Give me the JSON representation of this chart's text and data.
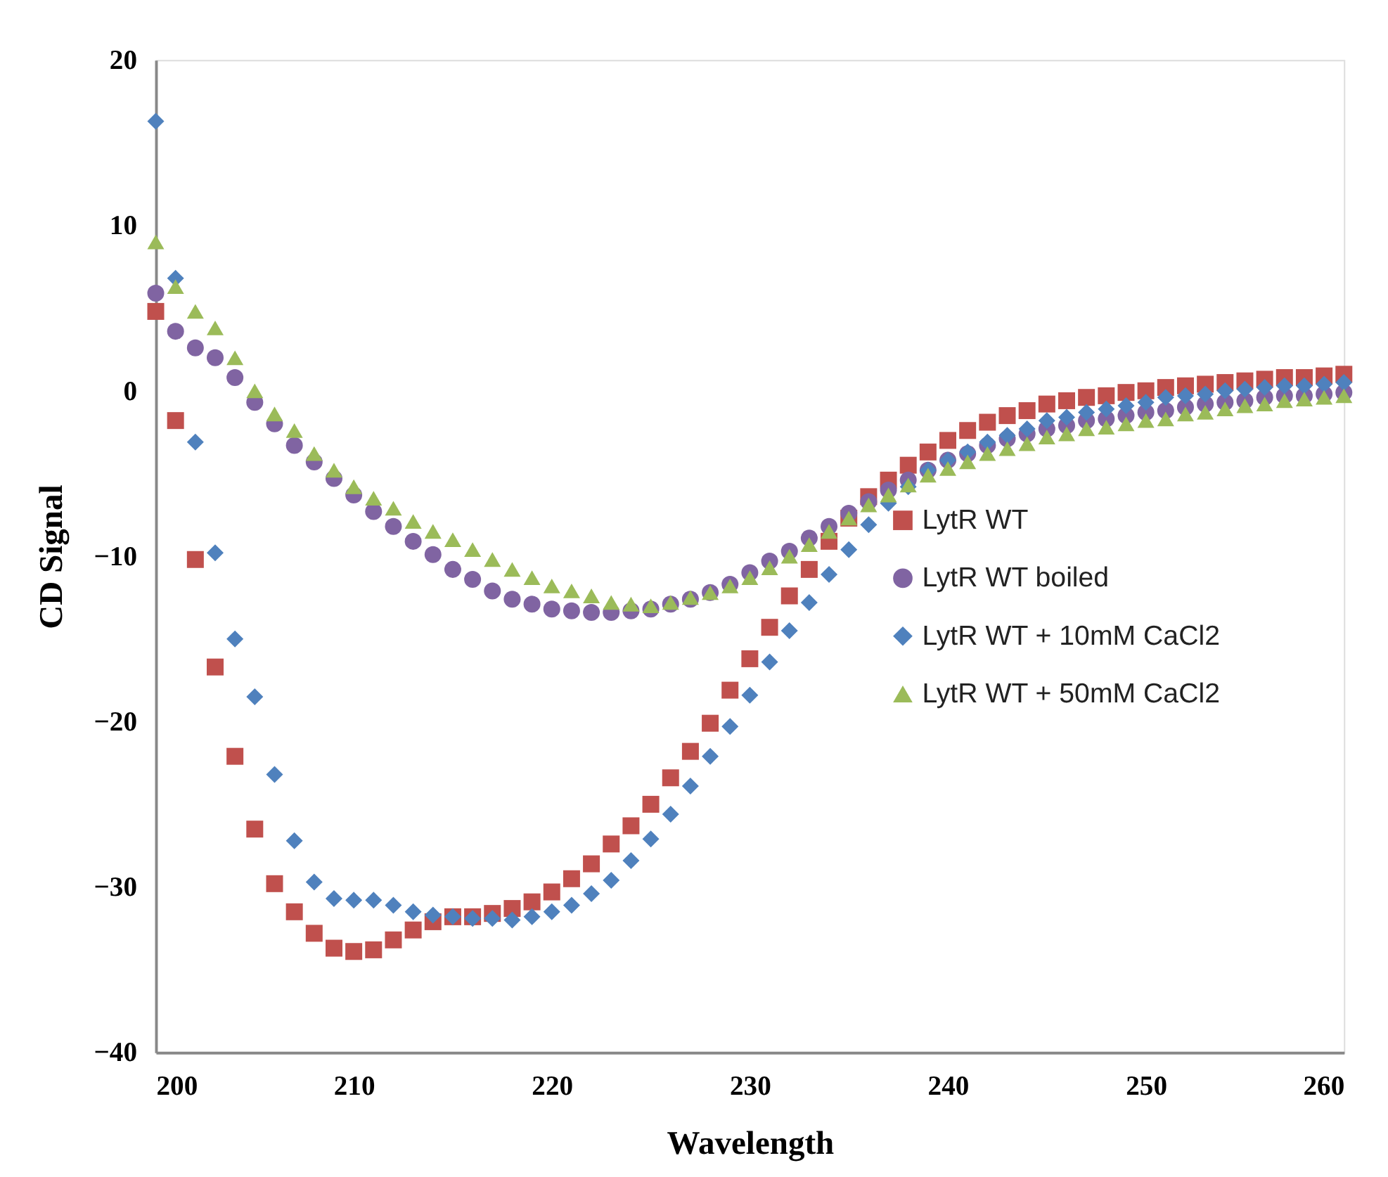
{
  "chart_data": {
    "type": "scatter",
    "xlabel": "Wavelength",
    "ylabel": "CD Signal",
    "xlim": [
      200,
      260
    ],
    "xticks": [
      200,
      210,
      220,
      230,
      240,
      250,
      260
    ],
    "ylim": [
      -40,
      20
    ],
    "yticks": [
      -40,
      -30,
      -20,
      -10,
      0,
      10,
      20
    ],
    "grid": false,
    "legend": "right",
    "x": [
      200,
      201,
      202,
      203,
      204,
      205,
      206,
      207,
      208,
      209,
      210,
      211,
      212,
      213,
      214,
      215,
      216,
      217,
      218,
      219,
      220,
      221,
      222,
      223,
      224,
      225,
      226,
      227,
      228,
      229,
      230,
      231,
      232,
      233,
      234,
      235,
      236,
      237,
      238,
      239,
      240,
      241,
      242,
      243,
      244,
      245,
      246,
      247,
      248,
      249,
      250,
      251,
      252,
      253,
      254,
      255,
      256,
      257,
      258,
      259,
      260
    ],
    "series": [
      {
        "name": "LytR WT",
        "color": "#c0504d",
        "marker": "square",
        "values": [
          4.8,
          -1.8,
          -10.2,
          -16.7,
          -22.1,
          -26.5,
          -29.8,
          -31.5,
          -32.8,
          -33.7,
          -33.9,
          -33.8,
          -33.2,
          -32.6,
          -32.1,
          -31.8,
          -31.8,
          -31.6,
          -31.3,
          -30.9,
          -30.3,
          -29.5,
          -28.6,
          -27.4,
          -26.3,
          -25.0,
          -23.4,
          -21.8,
          -20.1,
          -18.1,
          -16.2,
          -14.3,
          -12.4,
          -10.8,
          -9.1,
          -7.7,
          -6.4,
          -5.4,
          -4.5,
          -3.7,
          -3.0,
          -2.4,
          -1.9,
          -1.5,
          -1.2,
          -0.8,
          -0.6,
          -0.4,
          -0.3,
          -0.1,
          0,
          0.2,
          0.3,
          0.4,
          0.5,
          0.6,
          0.7,
          0.8,
          0.8,
          0.9,
          1.0
        ]
      },
      {
        "name": "LytR WT boiled",
        "color": "#8064a2",
        "marker": "circle",
        "values": [
          5.9,
          3.6,
          2.6,
          2.0,
          0.8,
          -0.7,
          -2.0,
          -3.3,
          -4.3,
          -5.3,
          -6.3,
          -7.3,
          -8.2,
          -9.1,
          -9.9,
          -10.8,
          -11.4,
          -12.1,
          -12.6,
          -12.9,
          -13.2,
          -13.3,
          -13.4,
          -13.4,
          -13.3,
          -13.2,
          -12.9,
          -12.6,
          -12.2,
          -11.7,
          -11.0,
          -10.3,
          -9.7,
          -8.9,
          -8.2,
          -7.4,
          -6.7,
          -6.0,
          -5.4,
          -4.8,
          -4.2,
          -3.8,
          -3.3,
          -2.9,
          -2.6,
          -2.3,
          -2.1,
          -1.8,
          -1.7,
          -1.5,
          -1.3,
          -1.2,
          -1.0,
          -0.8,
          -0.7,
          -0.6,
          -0.4,
          -0.3,
          -0.3,
          -0.2,
          -0.1
        ]
      },
      {
        "name": "LytR WT + 10mM  CaCl2",
        "color": "#4f81bd",
        "marker": "diamond",
        "values": [
          16.3,
          6.8,
          -3.1,
          -9.8,
          -15.0,
          -18.5,
          -23.2,
          -27.2,
          -29.7,
          -30.7,
          -30.8,
          -30.8,
          -31.1,
          -31.5,
          -31.7,
          -31.8,
          -31.9,
          -31.9,
          -32.0,
          -31.8,
          -31.5,
          -31.1,
          -30.4,
          -29.6,
          -28.4,
          -27.1,
          -25.6,
          -23.9,
          -22.1,
          -20.3,
          -18.4,
          -16.4,
          -14.5,
          -12.8,
          -11.1,
          -9.6,
          -8.1,
          -6.8,
          -5.8,
          -4.8,
          -4.2,
          -3.7,
          -3.1,
          -2.7,
          -2.3,
          -1.8,
          -1.6,
          -1.3,
          -1.1,
          -0.9,
          -0.7,
          -0.4,
          -0.3,
          -0.2,
          0,
          0.1,
          0.2,
          0.3,
          0.3,
          0.4,
          0.5
        ]
      },
      {
        "name": "LytR WT + 50mM  CaCl2",
        "color": "#9bbb59",
        "marker": "triangle",
        "values": [
          9.0,
          6.3,
          4.8,
          3.8,
          2.0,
          0,
          -1.4,
          -2.4,
          -3.8,
          -4.8,
          -5.8,
          -6.5,
          -7.1,
          -7.9,
          -8.5,
          -9.0,
          -9.6,
          -10.2,
          -10.8,
          -11.3,
          -11.8,
          -12.1,
          -12.4,
          -12.8,
          -12.9,
          -13.0,
          -12.8,
          -12.5,
          -12.2,
          -11.8,
          -11.3,
          -10.7,
          -10.0,
          -9.3,
          -8.5,
          -7.7,
          -6.9,
          -6.3,
          -5.7,
          -5.1,
          -4.7,
          -4.3,
          -3.8,
          -3.5,
          -3.2,
          -2.8,
          -2.6,
          -2.3,
          -2.2,
          -2.0,
          -1.8,
          -1.7,
          -1.4,
          -1.3,
          -1.1,
          -0.9,
          -0.8,
          -0.6,
          -0.5,
          -0.4,
          -0.3
        ]
      }
    ]
  }
}
